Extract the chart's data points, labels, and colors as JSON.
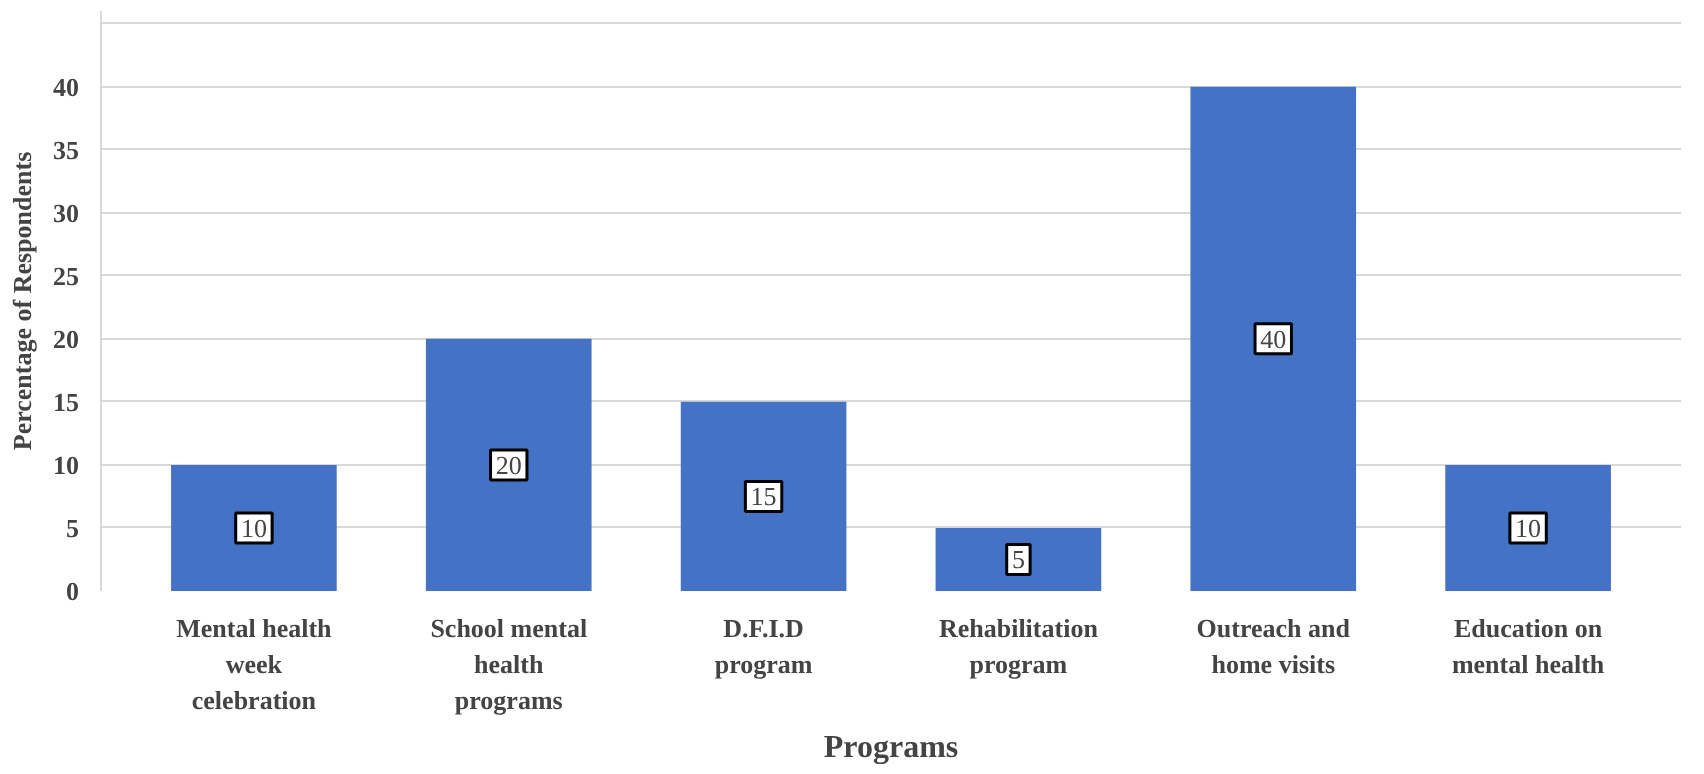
{
  "chart_data": {
    "type": "bar",
    "xlabel": "Programs",
    "ylabel": "Percentage of Respondents",
    "categories": [
      "Mental health week celebration",
      "School mental health programs",
      "D.F.I.D program",
      "Rehabilitation program",
      "Outreach and home visits",
      "Education on mental health"
    ],
    "values": [
      10,
      20,
      15,
      5,
      40,
      10
    ],
    "color": "#4472c4",
    "ylim": [
      0,
      46
    ],
    "yticks": [
      0,
      5,
      10,
      15,
      20,
      25,
      30,
      35,
      40,
      {
        "value": 45,
        "label": null
      }
    ],
    "grid": "y",
    "data_labels": true
  }
}
